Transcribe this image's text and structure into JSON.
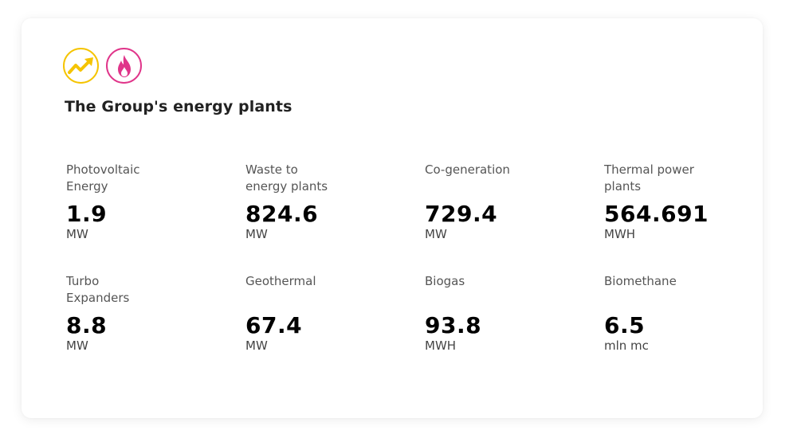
{
  "header": {
    "title": "The Group's energy plants",
    "icons": [
      {
        "name": "trend-up-icon",
        "color": "#F5C400"
      },
      {
        "name": "flame-icon",
        "color": "#E0358A"
      }
    ]
  },
  "stats": [
    {
      "label": "Photovoltaic\nEnergy",
      "value": "1.9",
      "unit": "MW"
    },
    {
      "label": "Waste to\nenergy plants",
      "value": "824.6",
      "unit": "MW"
    },
    {
      "label": "Co-generation",
      "value": "729.4",
      "unit": "MW"
    },
    {
      "label": "Thermal power\nplants",
      "value": "564.691",
      "unit": "MWH"
    },
    {
      "label": "Turbo\nExpanders",
      "value": "8.8",
      "unit": "MW"
    },
    {
      "label": "Geothermal",
      "value": "67.4",
      "unit": "MW"
    },
    {
      "label": "Biogas",
      "value": "93.8",
      "unit": "MWH"
    },
    {
      "label": "Biomethane",
      "value": "6.5",
      "unit": "mln mc"
    }
  ]
}
